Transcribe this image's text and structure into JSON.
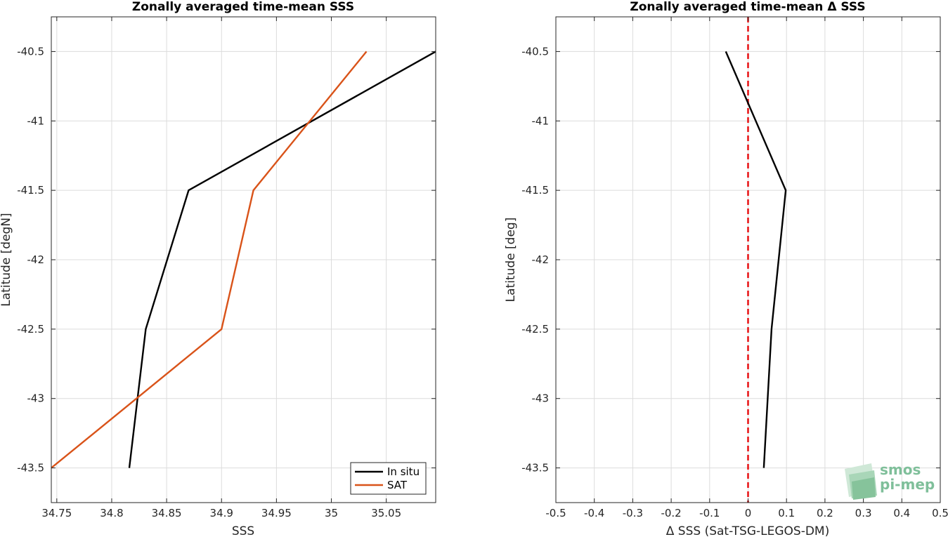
{
  "colors": {
    "insitu": "#000000",
    "sat": "#d95319",
    "zero_line": "#e8191b",
    "grid": "#dcdcdc",
    "axis": "#262626",
    "logo": "#7fbf9a"
  },
  "logo": {
    "line1": "smos",
    "line2": "pi-mep"
  },
  "chart_data": [
    {
      "type": "line",
      "title": "Zonally averaged time-mean SSS",
      "xlabel": "SSS",
      "ylabel": "Latitude [degN]",
      "xlim": [
        34.745,
        35.095
      ],
      "ylim": [
        -43.75,
        -40.25
      ],
      "xticks": [
        34.75,
        34.8,
        34.85,
        34.9,
        34.95,
        35,
        35.05
      ],
      "xtick_labels": [
        "34.75",
        "34.8",
        "34.85",
        "34.9",
        "34.95",
        "35",
        "35.05"
      ],
      "yticks": [
        -40.5,
        -41,
        -41.5,
        -42,
        -42.5,
        -43,
        -43.5
      ],
      "ytick_labels": [
        "-40.5",
        "-41",
        "-41.5",
        "-42",
        "-42.5",
        "-43",
        "-43.5"
      ],
      "grid": true,
      "legend_position": "bottom-right",
      "series": [
        {
          "name": "In situ",
          "color_key": "insitu",
          "x": [
            34.816,
            34.831,
            34.87,
            35.095
          ],
          "y": [
            -43.5,
            -42.5,
            -41.5,
            -40.5
          ]
        },
        {
          "name": "SAT",
          "color_key": "sat",
          "x": [
            34.745,
            34.9,
            34.929,
            35.032
          ],
          "y": [
            -43.5,
            -42.5,
            -41.5,
            -40.5
          ]
        }
      ]
    },
    {
      "type": "line",
      "title": "Zonally averaged time-mean Δ SSS",
      "xlabel": "Δ SSS (Sat-TSG-LEGOS-DM)",
      "ylabel": "Latitude [deg]",
      "xlim": [
        -0.5,
        0.5
      ],
      "ylim": [
        -43.75,
        -40.25
      ],
      "xticks": [
        -0.5,
        -0.4,
        -0.3,
        -0.2,
        -0.1,
        0,
        0.1,
        0.2,
        0.3,
        0.4,
        0.5
      ],
      "xtick_labels": [
        "-0.5",
        "-0.4",
        "-0.3",
        "-0.2",
        "-0.1",
        "0",
        "0.1",
        "0.2",
        "0.3",
        "0.4",
        "0.5"
      ],
      "yticks": [
        -40.5,
        -41,
        -41.5,
        -42,
        -42.5,
        -43,
        -43.5
      ],
      "ytick_labels": [
        "-40.5",
        "-41",
        "-41.5",
        "-42",
        "-42.5",
        "-43",
        "-43.5"
      ],
      "grid": true,
      "reference_line": {
        "x": 0,
        "style": "dashed",
        "color_key": "zero_line"
      },
      "series": [
        {
          "color_key": "insitu",
          "x": [
            0.041,
            0.061,
            0.098,
            -0.058
          ],
          "y": [
            -43.5,
            -42.5,
            -41.5,
            -40.5
          ]
        }
      ]
    }
  ]
}
